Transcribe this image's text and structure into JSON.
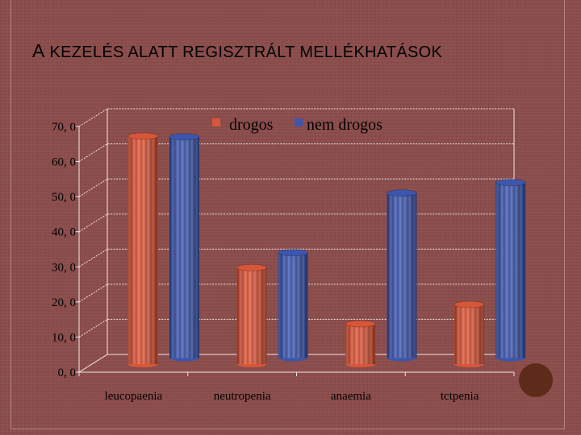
{
  "slide": {
    "title_first": "A",
    "title_rest": " KEZELÉS ALATT REGISZTRÁLT MELLÉKHATÁSOK"
  },
  "colors": {
    "background": "#8a4d4b",
    "series_drogos": "#d8563a",
    "series_nem_drogos": "#3d56ad",
    "gridline": "#f2e6e6",
    "decorative_circle": "#5e2a1a"
  },
  "chart_data": {
    "type": "bar",
    "title": "",
    "xlabel": "",
    "ylabel": "",
    "categories": [
      "leucopaenia",
      "neutropenia",
      "anaemia",
      "tctpenia"
    ],
    "series": [
      {
        "name": "drogos",
        "values": [
          65.0,
          27.5,
          11.5,
          17.0
        ]
      },
      {
        "name": "nem drogos",
        "values": [
          63.0,
          30.0,
          47.0,
          50.0
        ]
      }
    ],
    "ylim": [
      0,
      70
    ],
    "yticks": [
      "0, 0",
      "10, 0",
      "20, 0",
      "30, 0",
      "40, 0",
      "50, 0",
      "60, 0",
      "70, 0"
    ],
    "grid": true,
    "legend_position": "top-right",
    "style": "3d-cylinder"
  }
}
